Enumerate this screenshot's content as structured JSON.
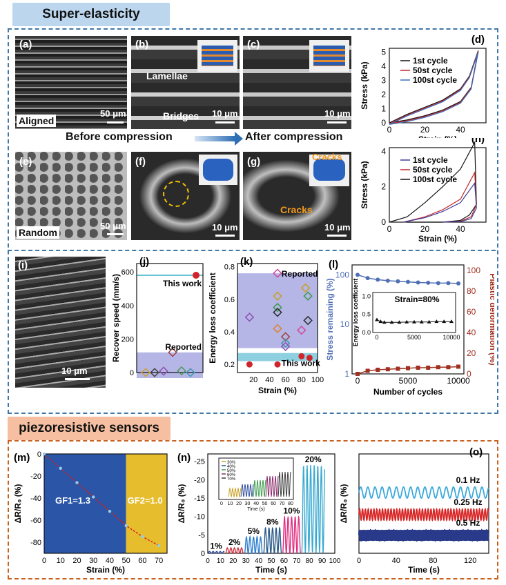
{
  "headers": {
    "top": "Super-elasticity",
    "bottom": "piezoresistive sensors"
  },
  "colors": {
    "header_top": "#bcd6ee",
    "header_bottom": "#f6bfa2",
    "border_top": "#3f77a8",
    "border_bottom": "#c9601e",
    "blue": "#4f6fb5",
    "red": "#c0282c",
    "teal": "#3ab0c8"
  },
  "panels": {
    "a": {
      "label": "(a)",
      "caption": "Aligned",
      "scale": "50 μm"
    },
    "b": {
      "label": "(b)",
      "lamellae": "Lamellae",
      "bridges": "Bridges",
      "scale": "10 μm"
    },
    "c": {
      "label": "(c)",
      "scale": "10 μm"
    },
    "e": {
      "label": "(e)",
      "caption": "Random",
      "scale": "50 μm"
    },
    "f": {
      "label": "(f)",
      "scale": "10 μm"
    },
    "g": {
      "label": "(g)",
      "cracks1": "Cracks",
      "cracks2": "Cracks",
      "scale": "10 μm"
    },
    "i": {
      "label": "(i)",
      "scale": "10 μm"
    },
    "before": "Before compression",
    "after": "After compression"
  },
  "chart_data": [
    {
      "id": "d",
      "type": "line",
      "label": "(d)",
      "xlabel": "Strain (%)",
      "ylabel": "Stress (kPa)",
      "xlim": [
        0,
        50
      ],
      "ylim": [
        0,
        5
      ],
      "xticks": [
        "0",
        "20",
        "40"
      ],
      "yticks": [
        "0",
        "1",
        "2",
        "3",
        "4",
        "5"
      ],
      "legend": [
        "1st cycle",
        "50st cycle",
        "100st cycle"
      ],
      "legend_colors": [
        "#111111",
        "#c0282c",
        "#3a6fc0"
      ],
      "loading": {
        "x": [
          0,
          10,
          20,
          30,
          40,
          45,
          50
        ],
        "y": [
          0,
          0.6,
          1.1,
          1.6,
          2.4,
          3.3,
          5.1
        ]
      },
      "unloading": {
        "x": [
          50,
          46,
          40,
          30,
          20,
          10,
          0
        ],
        "y": [
          5.1,
          2.5,
          1.5,
          0.9,
          0.5,
          0.2,
          0
        ]
      }
    },
    {
      "id": "h",
      "type": "line",
      "label": "(h)",
      "xlabel": "Strain (%)",
      "ylabel": "Stress (kPa)",
      "xlim": [
        0,
        50
      ],
      "ylim": [
        0,
        4
      ],
      "xticks": [
        "0",
        "20",
        "40"
      ],
      "yticks": [
        "0",
        "2",
        "4"
      ],
      "legend": [
        "1st cycle",
        "50st cycle",
        "100st cycle"
      ],
      "legend_colors": [
        "#3a3a9a",
        "#c0282c",
        "#111111"
      ],
      "series": [
        {
          "x": [
            0,
            10,
            20,
            30,
            40,
            48,
            49,
            45,
            40,
            30,
            20,
            10
          ],
          "y": [
            0,
            0.3,
            1.1,
            2.0,
            3.0,
            4.5,
            1.0,
            0.4,
            0.1,
            0,
            0,
            0
          ],
          "color": "#111111"
        },
        {
          "x": [
            8,
            20,
            30,
            40,
            48,
            49,
            46,
            40,
            30
          ],
          "y": [
            0,
            0.3,
            0.7,
            1.3,
            2.8,
            1.0,
            0.3,
            0.05,
            0
          ],
          "color": "#c0282c"
        },
        {
          "x": [
            8,
            20,
            30,
            40,
            48,
            49,
            46,
            40,
            30
          ],
          "y": [
            0,
            0.25,
            0.6,
            1.1,
            2.2,
            0.8,
            0.2,
            0.03,
            0
          ],
          "color": "#3a3a9a"
        }
      ]
    },
    {
      "id": "j",
      "type": "scatter",
      "label": "(j)",
      "ylabel": "Recover speed (mm/s)",
      "ylim": [
        0,
        650
      ],
      "yticks": [
        "0",
        "200",
        "400",
        "600"
      ],
      "points": [
        {
          "x": 1,
          "y": 0,
          "c": "#c9a030"
        },
        {
          "x": 2,
          "y": 0,
          "c": "#444444"
        },
        {
          "x": 3,
          "y": 8,
          "c": "#8a4fb0"
        },
        {
          "x": 4,
          "y": 120,
          "c": "#a04040"
        },
        {
          "x": 5,
          "y": 10,
          "c": "#4a9a5a"
        },
        {
          "x": 6,
          "y": 0,
          "c": "#3a9ab0"
        }
      ],
      "thiswork": {
        "y": 580,
        "label": "This work"
      },
      "reported": {
        "label": "Reported",
        "top": 120
      }
    },
    {
      "id": "k",
      "type": "scatter",
      "label": "(k)",
      "xlabel": "Strain (%)",
      "ylabel": "Energy loss coefficient",
      "xlim": [
        0,
        100
      ],
      "ylim": [
        0.15,
        0.82
      ],
      "xticks": [
        "20",
        "40",
        "60",
        "80",
        "100"
      ],
      "yticks": [
        "0.2",
        "0.4",
        "0.6",
        "0.8"
      ],
      "points": [
        {
          "x": 15,
          "y": 0.49
        },
        {
          "x": 50,
          "y": 0.76
        },
        {
          "x": 50,
          "y": 0.62
        },
        {
          "x": 50,
          "y": 0.55
        },
        {
          "x": 50,
          "y": 0.52
        },
        {
          "x": 50,
          "y": 0.42
        },
        {
          "x": 60,
          "y": 0.37
        },
        {
          "x": 60,
          "y": 0.33
        },
        {
          "x": 60,
          "y": 0.31
        },
        {
          "x": 80,
          "y": 0.41
        },
        {
          "x": 85,
          "y": 0.67
        },
        {
          "x": 88,
          "y": 0.62
        },
        {
          "x": 88,
          "y": 0.47
        }
      ],
      "thiswork_points": [
        {
          "x": 15,
          "y": 0.2
        },
        {
          "x": 50,
          "y": 0.2
        },
        {
          "x": 80,
          "y": 0.25
        },
        {
          "x": 90,
          "y": 0.24
        }
      ],
      "reported_label": "Reported",
      "thiswork_label": "This work"
    },
    {
      "id": "l",
      "type": "line",
      "label": "(l)",
      "xlabel": "Number of cycles",
      "ylabel": "Stress remaining (%)",
      "ylabel_right": "Plastic deformation (%)",
      "xticks": [
        "0",
        "5000",
        "10000"
      ],
      "yticks_left": [
        "1",
        "10",
        "100"
      ],
      "yticks_right": [
        "0",
        "20",
        "40",
        "60",
        "80",
        "100"
      ],
      "stress": {
        "x": [
          0,
          1000,
          2000,
          3000,
          4000,
          5000,
          6000,
          7000,
          8000,
          9000,
          10000
        ],
        "y": [
          100,
          86,
          80,
          76,
          74,
          72,
          70,
          69,
          68,
          68,
          67
        ]
      },
      "plastic": {
        "x": [
          0,
          1000,
          2000,
          3000,
          4000,
          5000,
          6000,
          7000,
          8000,
          9000,
          10000
        ],
        "y": [
          0,
          3,
          4,
          4.5,
          5,
          5.5,
          6,
          6,
          6.5,
          6.5,
          7
        ]
      },
      "inset": {
        "ylabel": "Energy loss coefficient",
        "title": "Strain=80%",
        "xticks": [
          "0",
          "5000",
          "10000"
        ],
        "yticks": [
          "0.0",
          "0.5",
          "1.0"
        ],
        "x": [
          0,
          500,
          1000,
          2000,
          3000,
          4000,
          5000,
          6000,
          7000,
          8000,
          9000,
          10000
        ],
        "y": [
          0.35,
          0.3,
          0.28,
          0.28,
          0.28,
          0.29,
          0.29,
          0.29,
          0.29,
          0.3,
          0.3,
          0.3
        ]
      }
    },
    {
      "id": "m",
      "type": "line",
      "label": "(m)",
      "xlabel": "Strain (%)",
      "ylabel": "ΔR/R₀ (%)",
      "xlim": [
        0,
        75
      ],
      "ylim": [
        0,
        -90
      ],
      "xticks": [
        "0",
        "10",
        "20",
        "30",
        "40",
        "50",
        "60",
        "70"
      ],
      "yticks": [
        "0",
        "-20",
        "-40",
        "-60",
        "-80"
      ],
      "gf1": "GF1=1.3",
      "gf2": "GF2=1.0",
      "split": 50,
      "x": [
        0,
        10,
        20,
        30,
        40,
        50,
        60,
        70
      ],
      "y": [
        0,
        -13,
        -26,
        -39,
        -52,
        -65,
        -75,
        -83
      ]
    },
    {
      "id": "n",
      "type": "line",
      "label": "(n)",
      "xlabel": "Time (s)",
      "ylabel": "ΔR/R₀ (%)",
      "xlim": [
        0,
        100
      ],
      "ylim": [
        0,
        -27
      ],
      "xticks": [
        "0",
        "10",
        "20",
        "30",
        "40",
        "50",
        "60",
        "70",
        "80",
        "90",
        "100"
      ],
      "yticks": [
        "0",
        "-5",
        "-10",
        "-15",
        "-20",
        "-25"
      ],
      "segments": [
        {
          "label": "1%",
          "t0": 0,
          "t1": 13,
          "amp": 0.5,
          "color": "#2f4a9a"
        },
        {
          "label": "2%",
          "t0": 14,
          "t1": 28,
          "amp": 1.5,
          "color": "#d03040"
        },
        {
          "label": "5%",
          "t0": 29,
          "t1": 43,
          "amp": 4.5,
          "color": "#2f7fd0"
        },
        {
          "label": "8%",
          "t0": 44,
          "t1": 58,
          "amp": 7,
          "color": "#2a5a8a"
        },
        {
          "label": "10%",
          "t0": 59,
          "t1": 73,
          "amp": 10,
          "color": "#e03080"
        },
        {
          "label": "20%",
          "t0": 74,
          "t1": 92,
          "amp": 24,
          "color": "#3aaad0"
        }
      ],
      "inset": {
        "legend": [
          "30%",
          "40%",
          "50%",
          "60%",
          "70%"
        ],
        "colors": [
          "#c8a020",
          "#2a4aa0",
          "#3a9a4a",
          "#8a2a6a",
          "#3a3a3a"
        ],
        "xticks": [
          "0",
          "10",
          "20",
          "30",
          "40",
          "50",
          "60",
          "70",
          "80"
        ],
        "xlabel": "Time (s)",
        "yticks": [
          "-80",
          "-60",
          "-40",
          "-20",
          "0"
        ],
        "ylabel": "ΔR/R₀ (%)"
      }
    },
    {
      "id": "o",
      "type": "line",
      "label": "(o)",
      "xlabel": "Time (s)",
      "ylabel": "ΔR/R₀ (%)",
      "xlim": [
        0,
        140
      ],
      "xticks": [
        "0",
        "40",
        "80",
        "120"
      ],
      "series": [
        {
          "name": "0.1 Hz",
          "freq": 0.1,
          "color": "#3aa8dc"
        },
        {
          "name": "0.25 Hz",
          "freq": 0.25,
          "color": "#d82828"
        },
        {
          "name": "0.5 Hz",
          "freq": 0.5,
          "color": "#2a3a8a"
        }
      ]
    }
  ]
}
